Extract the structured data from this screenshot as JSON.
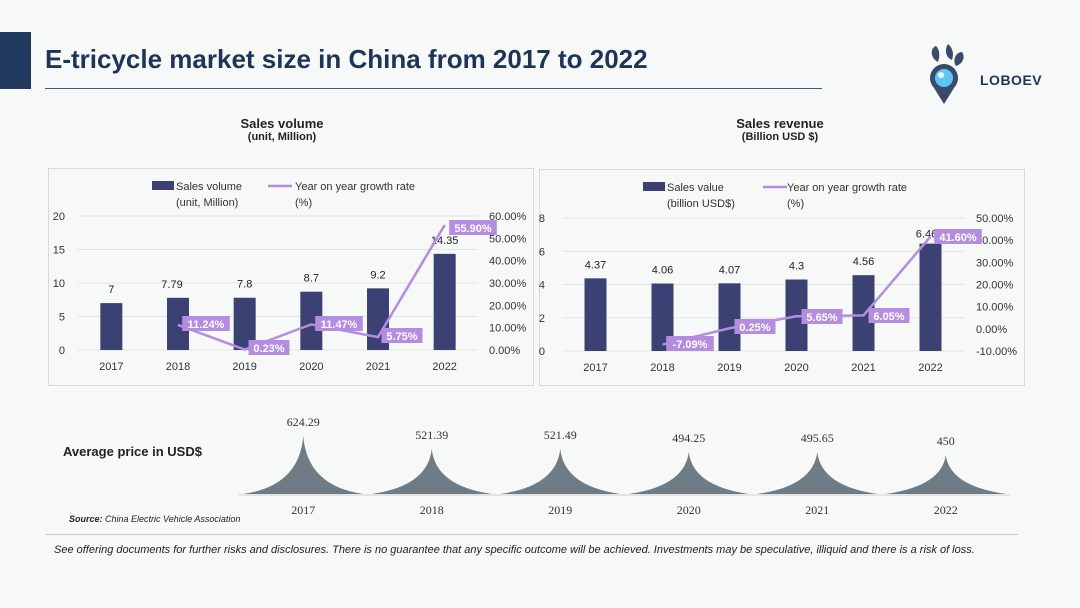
{
  "page": {
    "title": "E-tricycle market size in China from 2017 to 2022",
    "logo_text": "LOBOEV",
    "avg_price_label": "Average price in USD$",
    "source_label": "Source:",
    "source_text": "China Electric Vehicle Association",
    "disclaimer": "See offering documents for further risks and disclosures. There is no guarantee that any specific outcome will be achieved. Investments may be speculative, illiquid and there is a risk of loss."
  },
  "colors": {
    "bar": "#3b4273",
    "line": "#b48ce0",
    "label_bg": "#b48ce0",
    "title": "#1f3558",
    "mountain": "#707c85"
  },
  "chart_data": [
    {
      "type": "bar",
      "title": "Sales volume",
      "subtitle": "(unit, Million)",
      "categories": [
        "2017",
        "2018",
        "2019",
        "2020",
        "2021",
        "2022"
      ],
      "series": [
        {
          "name_line1": "Sales volume",
          "name_line2": "(unit, Million)",
          "kind": "bar",
          "axis": "left",
          "values": [
            7,
            7.79,
            7.8,
            8.7,
            9.2,
            14.35
          ],
          "labels": [
            "7",
            "7.79",
            "7.8",
            "8.7",
            "9.2",
            "14.35"
          ]
        },
        {
          "name_line1": "Year on year growth rate",
          "name_line2": "(%)",
          "kind": "line",
          "axis": "right",
          "values": [
            null,
            11.24,
            0.23,
            11.47,
            5.75,
            55.9
          ],
          "labels": [
            null,
            "11.24%",
            "0.23%",
            "11.47%",
            "5.75%",
            "55.90%"
          ]
        }
      ],
      "y_left": {
        "min": 0,
        "max": 20,
        "ticks": [
          "0",
          "5",
          "10",
          "15",
          "20"
        ]
      },
      "y_right": {
        "min": 0,
        "max": 60,
        "ticks": [
          "0.00%",
          "10.00%",
          "20.00%",
          "30.00%",
          "40.00%",
          "50.00%",
          "60.00%"
        ]
      },
      "legend": "top"
    },
    {
      "type": "bar",
      "title": "Sales revenue",
      "subtitle": "(Billion USD $)",
      "categories": [
        "2017",
        "2018",
        "2019",
        "2020",
        "2021",
        "2022"
      ],
      "series": [
        {
          "name_line1": "Sales value",
          "name_line2": "(billion USD$)",
          "kind": "bar",
          "axis": "left",
          "values": [
            4.37,
            4.06,
            4.07,
            4.3,
            4.56,
            6.46
          ],
          "labels": [
            "4.37",
            "4.06",
            "4.07",
            "4.3",
            "4.56",
            "6.46"
          ]
        },
        {
          "name_line1": "Year on year growth rate",
          "name_line2": "(%)",
          "kind": "line",
          "axis": "right",
          "values": [
            null,
            -7.09,
            0.25,
            5.65,
            6.05,
            41.6
          ],
          "labels": [
            null,
            "-7.09%",
            "0.25%",
            "5.65%",
            "6.05%",
            "41.60%"
          ]
        }
      ],
      "y_left": {
        "min": 0,
        "max": 8,
        "ticks": [
          "0",
          "2",
          "4",
          "6",
          "8"
        ]
      },
      "y_right": {
        "min": -10,
        "max": 50,
        "ticks": [
          "-10.00%",
          "0.00%",
          "10.00%",
          "20.00%",
          "30.00%",
          "40.00%",
          "50.00%"
        ]
      },
      "legend": "top"
    },
    {
      "type": "area",
      "categories": [
        "2017",
        "2018",
        "2019",
        "2020",
        "2021",
        "2022"
      ],
      "values": [
        624.29,
        521.39,
        521.49,
        494.25,
        495.65,
        450
      ],
      "labels": [
        "624.29",
        "521.39",
        "521.49",
        "494.25",
        "495.65",
        "450"
      ]
    }
  ]
}
